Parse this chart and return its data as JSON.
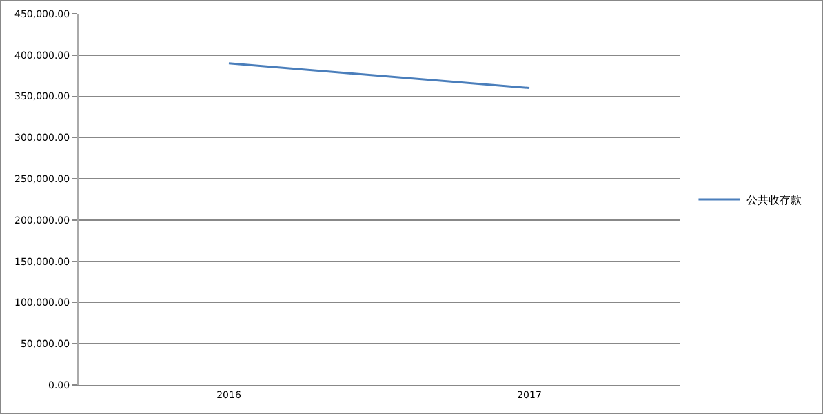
{
  "chart_data": {
    "type": "line",
    "categories": [
      "2016",
      "2017"
    ],
    "series": [
      {
        "name": "公共收存款",
        "color": "#4a7ebb",
        "values": [
          390000,
          360000
        ]
      }
    ],
    "ylim": [
      0,
      450000
    ],
    "yticks": [
      {
        "value": 0,
        "label": "0.00"
      },
      {
        "value": 50000,
        "label": "50,000.00"
      },
      {
        "value": 100000,
        "label": "100,000.00"
      },
      {
        "value": 150000,
        "label": "150,000.00"
      },
      {
        "value": 200000,
        "label": "200,000.00"
      },
      {
        "value": 250000,
        "label": "250,000.00"
      },
      {
        "value": 300000,
        "label": "300,000.00"
      },
      {
        "value": 350000,
        "label": "350,000.00"
      },
      {
        "value": 400000,
        "label": "400,000.00"
      },
      {
        "value": 450000,
        "label": "450,000.00"
      }
    ],
    "grid": "y",
    "legend": "right",
    "marker": "none",
    "line_style": "solid"
  }
}
